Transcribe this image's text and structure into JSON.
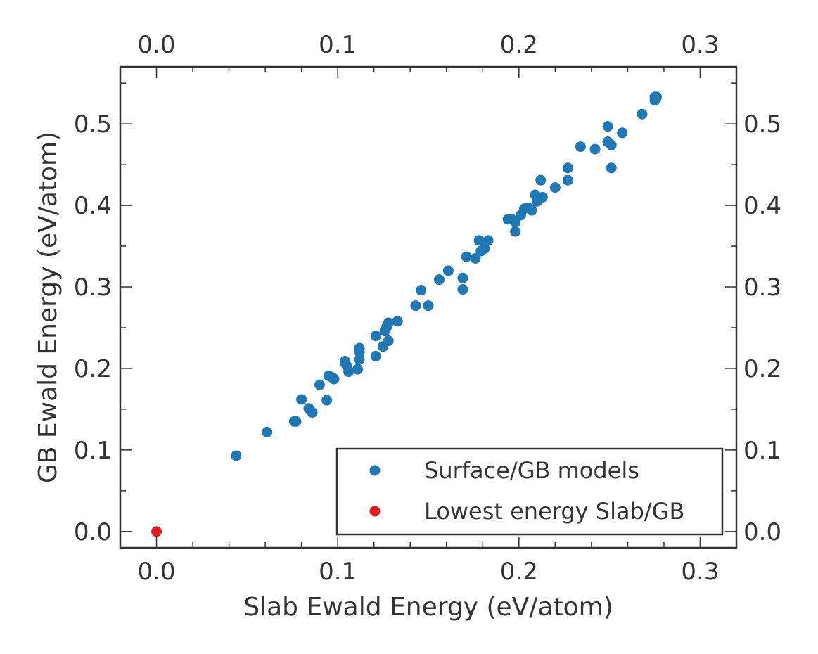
{
  "chart_data": {
    "type": "scatter",
    "xlabel": "Slab Ewald Energy (eV/atom)",
    "ylabel": "GB Ewald Energy (eV/atom)",
    "xlim": [
      -0.02,
      0.32
    ],
    "ylim": [
      -0.02,
      0.57
    ],
    "x_ticks": [
      0.0,
      0.1,
      0.2,
      0.3
    ],
    "x_tick_labels": [
      "0.0",
      "0.1",
      "0.2",
      "0.3"
    ],
    "y_ticks": [
      0.0,
      0.1,
      0.2,
      0.3,
      0.4,
      0.5
    ],
    "y_tick_labels": [
      "0.0",
      "0.1",
      "0.2",
      "0.3",
      "0.4",
      "0.5"
    ],
    "top_axis_mirrors_x": true,
    "right_axis_mirrors_y": true,
    "grid": false,
    "legend_position": "bottom-right",
    "series": [
      {
        "name": "Surface/GB models",
        "color": "#1f77b4",
        "points": [
          [
            0.044,
            0.093
          ],
          [
            0.061,
            0.122
          ],
          [
            0.076,
            0.135
          ],
          [
            0.077,
            0.135
          ],
          [
            0.08,
            0.162
          ],
          [
            0.084,
            0.151
          ],
          [
            0.086,
            0.146
          ],
          [
            0.09,
            0.18
          ],
          [
            0.094,
            0.161
          ],
          [
            0.095,
            0.191
          ],
          [
            0.097,
            0.189
          ],
          [
            0.098,
            0.187
          ],
          [
            0.104,
            0.207
          ],
          [
            0.104,
            0.209
          ],
          [
            0.105,
            0.203
          ],
          [
            0.106,
            0.196
          ],
          [
            0.111,
            0.199
          ],
          [
            0.112,
            0.225
          ],
          [
            0.112,
            0.22
          ],
          [
            0.112,
            0.211
          ],
          [
            0.121,
            0.24
          ],
          [
            0.121,
            0.215
          ],
          [
            0.125,
            0.227
          ],
          [
            0.126,
            0.246
          ],
          [
            0.127,
            0.251
          ],
          [
            0.128,
            0.234
          ],
          [
            0.128,
            0.256
          ],
          [
            0.133,
            0.258
          ],
          [
            0.143,
            0.277
          ],
          [
            0.146,
            0.296
          ],
          [
            0.15,
            0.277
          ],
          [
            0.156,
            0.309
          ],
          [
            0.161,
            0.32
          ],
          [
            0.169,
            0.297
          ],
          [
            0.169,
            0.311
          ],
          [
            0.171,
            0.337
          ],
          [
            0.176,
            0.335
          ],
          [
            0.178,
            0.357
          ],
          [
            0.179,
            0.344
          ],
          [
            0.181,
            0.347
          ],
          [
            0.183,
            0.357
          ],
          [
            0.194,
            0.383
          ],
          [
            0.196,
            0.383
          ],
          [
            0.198,
            0.379
          ],
          [
            0.198,
            0.368
          ],
          [
            0.201,
            0.388
          ],
          [
            0.203,
            0.396
          ],
          [
            0.205,
            0.397
          ],
          [
            0.207,
            0.394
          ],
          [
            0.209,
            0.413
          ],
          [
            0.21,
            0.405
          ],
          [
            0.212,
            0.431
          ],
          [
            0.213,
            0.41
          ],
          [
            0.22,
            0.422
          ],
          [
            0.227,
            0.431
          ],
          [
            0.227,
            0.446
          ],
          [
            0.234,
            0.472
          ],
          [
            0.242,
            0.469
          ],
          [
            0.249,
            0.497
          ],
          [
            0.249,
            0.478
          ],
          [
            0.251,
            0.474
          ],
          [
            0.251,
            0.446
          ],
          [
            0.257,
            0.489
          ],
          [
            0.268,
            0.512
          ],
          [
            0.275,
            0.533
          ],
          [
            0.275,
            0.529
          ],
          [
            0.276,
            0.533
          ]
        ]
      },
      {
        "name": "Lowest energy Slab/GB",
        "color": "#e31a1c",
        "points": [
          [
            0.0,
            0.0
          ]
        ]
      }
    ]
  }
}
